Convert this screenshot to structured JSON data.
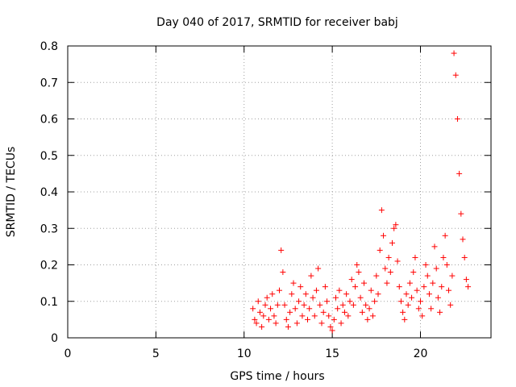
{
  "chart_data": {
    "type": "scatter",
    "title": "Day 040 of 2017, SRMTID for receiver babj",
    "xlabel": "GPS time / hours",
    "ylabel": "SRMTID / TECUs",
    "xlim": [
      0,
      24
    ],
    "ylim": [
      0,
      0.8
    ],
    "x_ticks": [
      0,
      5,
      10,
      15,
      20
    ],
    "y_ticks": [
      0,
      0.1,
      0.2,
      0.3,
      0.4,
      0.5,
      0.6,
      0.7,
      0.8
    ],
    "x_tick_labels": [
      "0",
      "5",
      "10",
      "15",
      "20"
    ],
    "y_tick_labels": [
      "0",
      "0.1",
      "0.2",
      "0.3",
      "0.4",
      "0.5",
      "0.6",
      "0.7",
      "0.8"
    ],
    "grid": true,
    "marker": "+",
    "color": "#ff0000",
    "series": [
      {
        "name": "SRMTID",
        "x": [
          10.5,
          10.6,
          10.7,
          10.8,
          10.9,
          11.0,
          11.1,
          11.2,
          11.3,
          11.4,
          11.5,
          11.6,
          11.7,
          11.8,
          11.9,
          12.0,
          12.1,
          12.2,
          12.3,
          12.4,
          12.5,
          12.6,
          12.7,
          12.8,
          12.9,
          13.0,
          13.1,
          13.2,
          13.3,
          13.4,
          13.5,
          13.6,
          13.7,
          13.8,
          13.9,
          14.0,
          14.1,
          14.2,
          14.3,
          14.4,
          14.5,
          14.6,
          14.7,
          14.8,
          14.9,
          15.0,
          15.1,
          15.2,
          15.3,
          15.4,
          15.5,
          15.6,
          15.7,
          15.8,
          15.9,
          16.0,
          16.1,
          16.2,
          16.3,
          16.4,
          16.5,
          16.6,
          16.7,
          16.8,
          16.9,
          17.0,
          17.1,
          17.2,
          17.3,
          17.4,
          17.5,
          17.6,
          17.7,
          17.8,
          17.9,
          18.0,
          18.1,
          18.2,
          18.3,
          18.4,
          18.5,
          18.6,
          18.7,
          18.8,
          18.9,
          19.0,
          19.1,
          19.2,
          19.3,
          19.4,
          19.5,
          19.6,
          19.7,
          19.8,
          19.9,
          20.0,
          20.1,
          20.2,
          20.3,
          20.4,
          20.5,
          20.6,
          20.7,
          20.8,
          20.9,
          21.0,
          21.1,
          21.2,
          21.3,
          21.4,
          21.5,
          21.6,
          21.7,
          21.8,
          21.9,
          22.0,
          22.1,
          22.2,
          22.3,
          22.4,
          22.5,
          22.6,
          22.7
        ],
        "y": [
          0.08,
          0.05,
          0.04,
          0.1,
          0.07,
          0.03,
          0.06,
          0.09,
          0.11,
          0.05,
          0.08,
          0.12,
          0.06,
          0.04,
          0.09,
          0.13,
          0.24,
          0.18,
          0.09,
          0.05,
          0.03,
          0.07,
          0.12,
          0.15,
          0.08,
          0.04,
          0.1,
          0.14,
          0.06,
          0.09,
          0.12,
          0.05,
          0.08,
          0.17,
          0.11,
          0.06,
          0.13,
          0.19,
          0.09,
          0.04,
          0.07,
          0.14,
          0.1,
          0.06,
          0.03,
          0.02,
          0.05,
          0.11,
          0.08,
          0.13,
          0.04,
          0.09,
          0.07,
          0.12,
          0.06,
          0.1,
          0.16,
          0.09,
          0.14,
          0.2,
          0.18,
          0.11,
          0.07,
          0.15,
          0.09,
          0.05,
          0.08,
          0.13,
          0.06,
          0.1,
          0.17,
          0.12,
          0.24,
          0.35,
          0.28,
          0.19,
          0.15,
          0.22,
          0.18,
          0.26,
          0.3,
          0.31,
          0.21,
          0.14,
          0.1,
          0.07,
          0.05,
          0.12,
          0.09,
          0.15,
          0.11,
          0.18,
          0.22,
          0.13,
          0.08,
          0.1,
          0.06,
          0.14,
          0.2,
          0.17,
          0.12,
          0.08,
          0.15,
          0.25,
          0.19,
          0.11,
          0.07,
          0.14,
          0.22,
          0.28,
          0.2,
          0.13,
          0.09,
          0.17,
          0.78,
          0.72,
          0.6,
          0.45,
          0.34,
          0.27,
          0.22,
          0.16,
          0.14
        ]
      }
    ]
  }
}
